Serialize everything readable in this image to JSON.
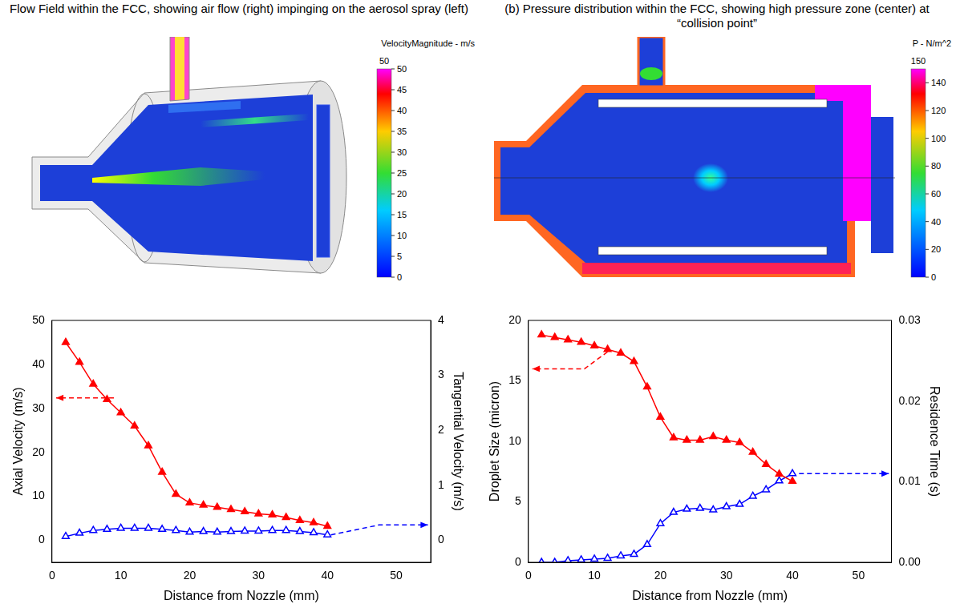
{
  "panels": [
    {
      "title": "Flow Field within the FCC, showing air flow (right) impinging on the aerosol spray (left)",
      "colorbar": {
        "title": "VelocityMagnitude - m/s",
        "range": [
          0,
          50
        ],
        "ticks": [
          0,
          5,
          10,
          15,
          20,
          25,
          30,
          35,
          40,
          45,
          50
        ]
      }
    },
    {
      "title": "(b) Pressure distribution within the FCC, showing high pressure zone (center) at “collision point”",
      "colorbar": {
        "title": "P - N/m^2",
        "range": [
          0,
          150
        ],
        "ticks": [
          0,
          20,
          40,
          60,
          80,
          100,
          120,
          140
        ]
      }
    }
  ],
  "chart_data": [
    {
      "type": "line",
      "x_label": "Distance from Nozzle (mm)",
      "y_label": "Axial Velocity (m/s)",
      "y2_label": "Tangential Velocity (m/s)",
      "x": [
        2,
        4,
        6,
        8,
        10,
        12,
        14,
        16,
        18,
        20,
        22,
        24,
        26,
        28,
        30,
        32,
        34,
        36,
        38,
        40
      ],
      "xlim": [
        0,
        55
      ],
      "xticks": [
        0,
        10,
        20,
        30,
        40,
        50
      ],
      "ylim": [
        -5,
        50
      ],
      "yticks": [
        0,
        10,
        20,
        30,
        40,
        50
      ],
      "y2lim": [
        -0.4,
        4
      ],
      "y2ticks": [
        0,
        1,
        2,
        3,
        4
      ],
      "grid": false,
      "series": [
        {
          "color": "#ff0000",
          "marker": "triangle",
          "line_style": "solid",
          "axis": "y",
          "values": [
            45,
            40.5,
            35.5,
            32,
            29,
            26,
            21.5,
            15.5,
            10.5,
            8.5,
            8,
            7.5,
            7,
            6.5,
            6,
            5.8,
            5.2,
            4.5,
            4,
            3.2
          ]
        },
        {
          "color": "#0000ff",
          "marker": "triangle_open",
          "line_style": "solid",
          "axis": "y2",
          "values": [
            0.07,
            0.13,
            0.18,
            0.2,
            0.22,
            0.22,
            0.22,
            0.2,
            0.18,
            0.15,
            0.16,
            0.15,
            0.16,
            0.17,
            0.17,
            0.18,
            0.18,
            0.16,
            0.14,
            0.1
          ]
        }
      ],
      "arrows": [
        {
          "axis": "y",
          "color": "#ff0000",
          "line_style": "dashed",
          "points": [
            [
              9,
              32.4
            ],
            [
              0.6,
              32.4
            ]
          ]
        },
        {
          "axis": "y2",
          "color": "#0000ff",
          "line_style": "dashed",
          "points": [
            [
              40.5,
              0.1
            ],
            [
              47.5,
              0.28
            ],
            [
              54.6,
              0.28
            ]
          ]
        }
      ]
    },
    {
      "type": "line",
      "x_label": "Distance from Nozzle (mm)",
      "y_label": "Droplet Size (micron)",
      "y2_label": "Residence Time (s)",
      "x": [
        2,
        4,
        6,
        8,
        10,
        12,
        14,
        16,
        18,
        20,
        22,
        24,
        26,
        28,
        30,
        32,
        34,
        36,
        38,
        40
      ],
      "xlim": [
        0,
        55
      ],
      "xticks": [
        0,
        10,
        20,
        30,
        40,
        50
      ],
      "ylim": [
        0,
        20
      ],
      "yticks": [
        0,
        5,
        10,
        15,
        20
      ],
      "y2lim": [
        0,
        0.03
      ],
      "y2ticks": [
        {
          "value": 0,
          "label": "0.00"
        },
        {
          "value": 0.01,
          "label": "0.01"
        },
        {
          "value": 0.02,
          "label": "0.02"
        },
        {
          "value": 0.03,
          "label": "0.03"
        }
      ],
      "grid": false,
      "series": [
        {
          "color": "#ff0000",
          "marker": "triangle",
          "line_style": "solid",
          "axis": "y",
          "values": [
            18.8,
            18.6,
            18.4,
            18.2,
            17.9,
            17.6,
            17.3,
            16.6,
            14.5,
            12,
            10.3,
            10.1,
            10.1,
            10.4,
            10.1,
            9.9,
            9.1,
            8.1,
            7.3,
            6.7
          ]
        },
        {
          "color": "#0000ff",
          "marker": "triangle_open",
          "line_style": "solid",
          "axis": "y2",
          "values": [
            0,
            0,
            0.0002,
            0.0003,
            0.0004,
            0.0005,
            0.0008,
            0.001,
            0.0022,
            0.0048,
            0.0062,
            0.0066,
            0.0067,
            0.0065,
            0.0069,
            0.0072,
            0.0082,
            0.009,
            0.0101,
            0.011
          ]
        }
      ],
      "arrows": [
        {
          "axis": "y",
          "color": "#ff0000",
          "line_style": "dashed",
          "points": [
            [
              12,
              17.4
            ],
            [
              8.5,
              16
            ],
            [
              0.6,
              16
            ]
          ]
        },
        {
          "axis": "y2",
          "color": "#0000ff",
          "line_style": "dashed",
          "points": [
            [
              41,
              0.011
            ],
            [
              54.6,
              0.011
            ]
          ]
        }
      ]
    }
  ]
}
